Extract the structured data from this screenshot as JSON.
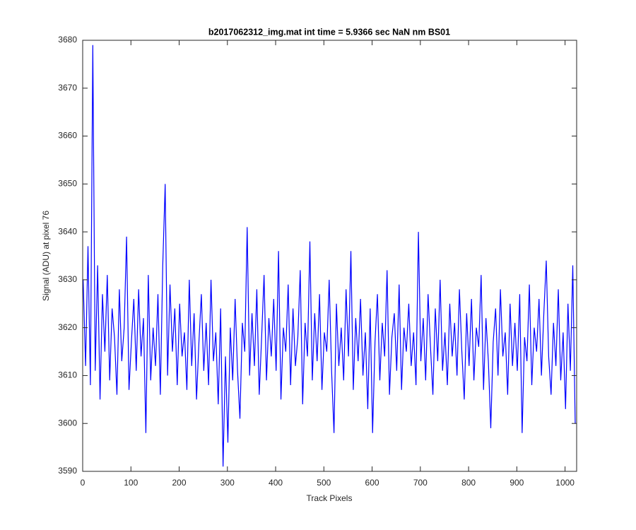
{
  "chart_data": {
    "type": "line",
    "title": "b2017062312_img.mat int time = 5.9366 sec  NaN nm BS01",
    "x_label": "Track Pixels",
    "y_label": "Signal (ADU) at pixel 76",
    "color": "#0000ff",
    "xlim": [
      0,
      1024
    ],
    "xticks": [
      0,
      100,
      200,
      300,
      400,
      500,
      600,
      700,
      800,
      900,
      1000
    ],
    "ylim": [
      3590,
      3680
    ],
    "yticks": [
      3590,
      3600,
      3610,
      3620,
      3630,
      3640,
      3650,
      3660,
      3670,
      3680
    ],
    "x": [
      1,
      6,
      11,
      16,
      21,
      26,
      31,
      36,
      41,
      46,
      51,
      56,
      61,
      66,
      71,
      76,
      81,
      86,
      91,
      96,
      101,
      106,
      111,
      116,
      121,
      126,
      131,
      136,
      141,
      146,
      151,
      156,
      161,
      166,
      171,
      176,
      181,
      186,
      191,
      196,
      201,
      206,
      211,
      216,
      221,
      226,
      231,
      236,
      241,
      246,
      251,
      256,
      261,
      266,
      271,
      276,
      281,
      286,
      291,
      296,
      301,
      306,
      311,
      316,
      321,
      326,
      331,
      336,
      341,
      346,
      351,
      356,
      361,
      366,
      371,
      376,
      381,
      386,
      391,
      396,
      401,
      406,
      411,
      416,
      421,
      426,
      431,
      436,
      441,
      446,
      451,
      456,
      461,
      466,
      471,
      476,
      481,
      486,
      491,
      496,
      501,
      506,
      511,
      516,
      521,
      526,
      531,
      536,
      541,
      546,
      551,
      556,
      561,
      566,
      571,
      576,
      581,
      586,
      591,
      596,
      601,
      606,
      611,
      616,
      621,
      626,
      631,
      636,
      641,
      646,
      651,
      656,
      661,
      666,
      671,
      676,
      681,
      686,
      691,
      696,
      701,
      706,
      711,
      716,
      721,
      726,
      731,
      736,
      741,
      746,
      751,
      756,
      761,
      766,
      771,
      776,
      781,
      786,
      791,
      796,
      801,
      806,
      811,
      816,
      821,
      826,
      831,
      836,
      841,
      846,
      851,
      856,
      861,
      866,
      871,
      876,
      881,
      886,
      891,
      896,
      901,
      906,
      911,
      916,
      921,
      926,
      931,
      936,
      941,
      946,
      951,
      956,
      961,
      966,
      971,
      976,
      981,
      986,
      991,
      996,
      1001,
      1006,
      1011,
      1016,
      1021
    ],
    "values": [
      3630,
      3612,
      3637,
      3608,
      3679,
      3611,
      3633,
      3605,
      3627,
      3615,
      3631,
      3609,
      3624,
      3618,
      3606,
      3628,
      3613,
      3620,
      3639,
      3607,
      3617,
      3626,
      3611,
      3628,
      3614,
      3622,
      3598,
      3631,
      3609,
      3620,
      3612,
      3627,
      3606,
      3633,
      3650,
      3610,
      3629,
      3615,
      3624,
      3608,
      3625,
      3614,
      3619,
      3607,
      3630,
      3612,
      3623,
      3605,
      3617,
      3627,
      3611,
      3621,
      3608,
      3630,
      3613,
      3619,
      3604,
      3624,
      3591,
      3614,
      3596,
      3620,
      3609,
      3626,
      3611,
      3601,
      3621,
      3615,
      3641,
      3610,
      3623,
      3612,
      3628,
      3606,
      3618,
      3631,
      3609,
      3622,
      3614,
      3626,
      3611,
      3636,
      3605,
      3620,
      3615,
      3629,
      3608,
      3624,
      3612,
      3618,
      3632,
      3604,
      3621,
      3614,
      3638,
      3609,
      3623,
      3613,
      3627,
      3607,
      3619,
      3615,
      3630,
      3611,
      3598,
      3625,
      3612,
      3620,
      3609,
      3628,
      3614,
      3636,
      3607,
      3622,
      3613,
      3626,
      3610,
      3619,
      3603,
      3624,
      3598,
      3617,
      3627,
      3609,
      3621,
      3614,
      3632,
      3606,
      3618,
      3623,
      3611,
      3629,
      3607,
      3620,
      3615,
      3625,
      3612,
      3619,
      3608,
      3640,
      3613,
      3622,
      3609,
      3627,
      3616,
      3606,
      3624,
      3613,
      3630,
      3611,
      3619,
      3608,
      3625,
      3614,
      3621,
      3610,
      3628,
      3615,
      3605,
      3623,
      3612,
      3626,
      3609,
      3620,
      3616,
      3631,
      3607,
      3622,
      3613,
      3599,
      3617,
      3624,
      3610,
      3628,
      3614,
      3619,
      3606,
      3625,
      3612,
      3621,
      3611,
      3627,
      3598,
      3618,
      3613,
      3629,
      3608,
      3620,
      3615,
      3626,
      3610,
      3623,
      3634,
      3614,
      3606,
      3621,
      3612,
      3628,
      3609,
      3619,
      3603,
      3625,
      3611,
      3633,
      3600
    ]
  }
}
